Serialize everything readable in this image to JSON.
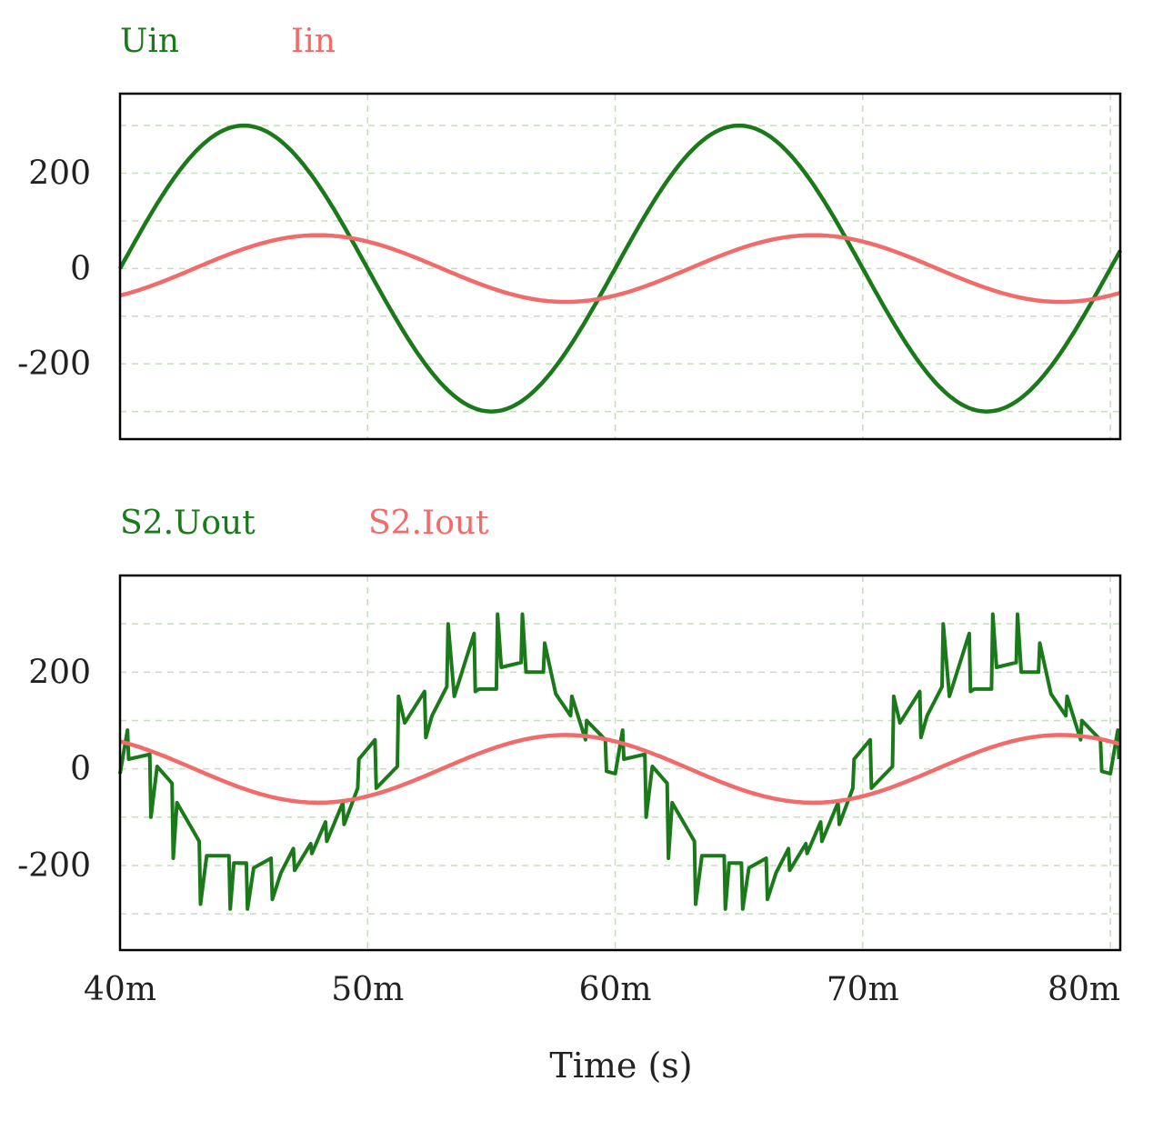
{
  "colors": {
    "green": "#1a7a1a",
    "red": "#f26b6b",
    "grid": "#c8dcc0",
    "frame": "#000000",
    "text": "#222222"
  },
  "x_axis": {
    "label": "Time (s)",
    "ticks": [
      40,
      50,
      60,
      70,
      80
    ],
    "tick_labels": [
      "40m",
      "50m",
      "60m",
      "70m",
      "80m"
    ],
    "range": [
      40,
      80.4
    ]
  },
  "chart_data": [
    {
      "type": "line",
      "legend": [
        "Uin",
        "Iin"
      ],
      "ylim": [
        -358,
        367
      ],
      "yticks": [
        200,
        0,
        -200
      ],
      "ytick_labels": [
        "200",
        "0",
        "-200"
      ],
      "grid": true,
      "series": [
        {
          "name": "Uin",
          "color": "#1a7a1a",
          "kind": "sine",
          "amp": 300,
          "phase_ms": 40
        },
        {
          "name": "Iin",
          "color": "#f26b6b",
          "kind": "sine",
          "amp": 70,
          "phase_ms": 43
        }
      ]
    },
    {
      "type": "line",
      "legend": [
        "S2.Uout",
        "S2.Iout"
      ],
      "ylim": [
        -375,
        400
      ],
      "yticks": [
        200,
        0,
        -200
      ],
      "ytick_labels": [
        "200",
        "0",
        "-200"
      ],
      "grid": true,
      "series": [
        {
          "name": "S2.Uout",
          "color": "#1a7a1a",
          "kind": "chopped",
          "period_start_ms": 50,
          "points": [
            [
              40,
              -10
            ],
            [
              40.3,
              80
            ],
            [
              40.35,
              20
            ],
            [
              41.2,
              30
            ],
            [
              41.25,
              -100
            ],
            [
              41.5,
              5
            ],
            [
              42.1,
              -30
            ],
            [
              42.15,
              -185
            ],
            [
              42.3,
              -70
            ],
            [
              43.2,
              -150
            ],
            [
              43.25,
              -280
            ],
            [
              43.5,
              -180
            ],
            [
              44.4,
              -180
            ],
            [
              44.45,
              -290
            ],
            [
              44.6,
              -195
            ],
            [
              45.1,
              -195
            ],
            [
              45.15,
              -290
            ],
            [
              45.4,
              -205
            ],
            [
              46.1,
              -185
            ],
            [
              46.15,
              -270
            ],
            [
              46.5,
              -215
            ],
            [
              47.0,
              -165
            ],
            [
              47.05,
              -210
            ],
            [
              47.7,
              -155
            ],
            [
              47.75,
              -175
            ],
            [
              48.3,
              -110
            ],
            [
              48.35,
              -150
            ],
            [
              49.0,
              -70
            ],
            [
              49.05,
              -115
            ],
            [
              49.6,
              -40
            ],
            [
              49.65,
              20
            ],
            [
              50.3,
              60
            ],
            [
              50.35,
              -40
            ],
            [
              51.2,
              5
            ],
            [
              51.25,
              150
            ],
            [
              51.5,
              95
            ],
            [
              52.3,
              160
            ],
            [
              52.35,
              65
            ],
            [
              52.6,
              110
            ],
            [
              53.2,
              170
            ],
            [
              53.25,
              300
            ],
            [
              53.5,
              150
            ],
            [
              54.3,
              280
            ],
            [
              54.35,
              160
            ],
            [
              54.5,
              165
            ],
            [
              55.2,
              165
            ],
            [
              55.25,
              320
            ],
            [
              55.4,
              210
            ],
            [
              56.2,
              220
            ],
            [
              56.25,
              320
            ],
            [
              56.4,
              200
            ],
            [
              57.1,
              200
            ],
            [
              57.15,
              260
            ],
            [
              57.6,
              155
            ],
            [
              58.2,
              110
            ],
            [
              58.25,
              150
            ],
            [
              58.8,
              60
            ],
            [
              58.85,
              100
            ],
            [
              59.6,
              60
            ],
            [
              59.65,
              -5
            ]
          ]
        },
        {
          "name": "S2.Iout",
          "color": "#f26b6b",
          "kind": "sine",
          "amp": 70,
          "phase_ms": 53
        }
      ]
    }
  ]
}
